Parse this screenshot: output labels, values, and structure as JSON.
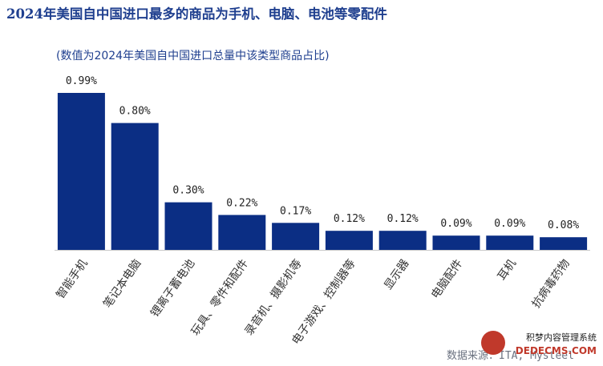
{
  "title": "2024年美国自中国进口最多的商品为手机、电脑、电池等零配件",
  "subtitle": "(数值为2024年美国自中国进口总量中该类型商品占比)",
  "source": "数据来源：ITA, Mysteel",
  "watermark": {
    "line1": "积梦内容管理系统",
    "line2": "DEDECMS.COM"
  },
  "colors": {
    "bar": "#0b2e84",
    "title": "#1f3f8f"
  },
  "chart_data": {
    "type": "bar",
    "categories": [
      "智能手机",
      "笔记本电脑",
      "锂离子蓄电池",
      "玩具、零件和配件",
      "录音机、摄影机等",
      "电子游戏、控制器等",
      "显示器",
      "电脑配件",
      "耳机",
      "抗病毒药物"
    ],
    "values": [
      0.99,
      0.8,
      0.3,
      0.22,
      0.17,
      0.12,
      0.12,
      0.09,
      0.09,
      0.08
    ],
    "labels": [
      "0.99%",
      "0.80%",
      "0.30%",
      "0.22%",
      "0.17%",
      "0.12%",
      "0.12%",
      "0.09%",
      "0.09%",
      "0.08%"
    ],
    "ylim": [
      0,
      0.99
    ],
    "grid": false,
    "legend": "none"
  }
}
